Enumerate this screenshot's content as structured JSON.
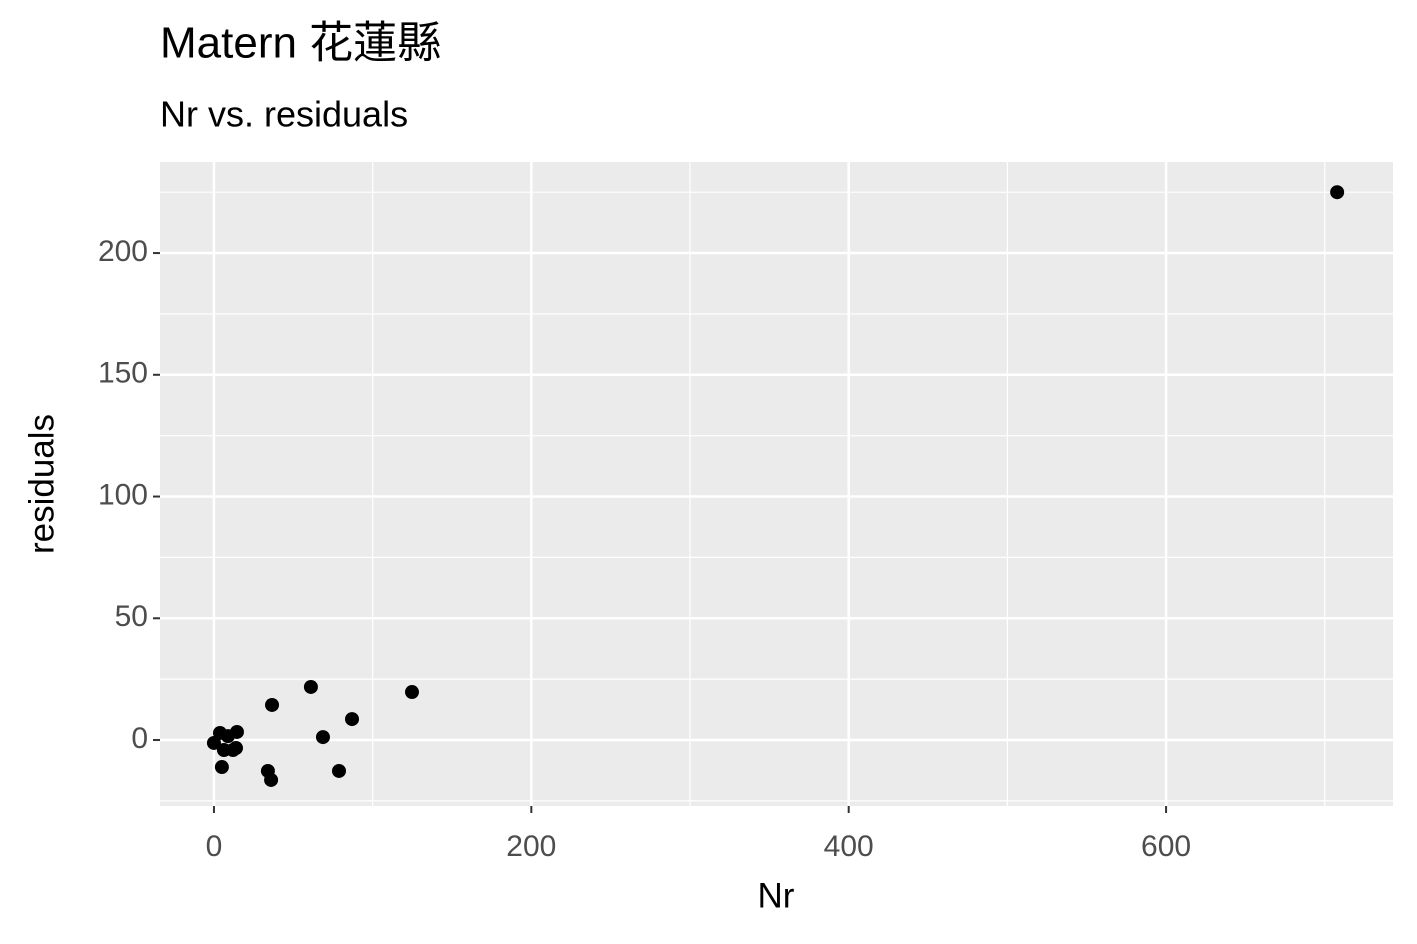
{
  "chart_data": {
    "type": "scatter",
    "title": "Matern 花蓮縣",
    "subtitle": "Nr vs. residuals",
    "x_label": "Nr",
    "y_label": "residuals",
    "x": [
      707.8,
      124.8,
      61.1,
      36.6,
      87,
      68.7,
      78.8,
      34,
      36,
      0,
      3.8,
      8.8,
      14.5,
      13.9,
      12,
      5,
      6.3
    ],
    "series": [
      {
        "color": "#000000",
        "values": [
          225,
          19.7,
          21.8,
          14.4,
          8.6,
          1.2,
          -12.7,
          -12.7,
          -16.4,
          -1.2,
          2.9,
          1.6,
          3.3,
          -3.3,
          -4.1,
          -11.1,
          -4.1
        ]
      }
    ],
    "xlim": [
      -34,
      743
    ],
    "ylim": [
      -27.1,
      237.4
    ],
    "xticks": [
      0,
      200,
      400,
      600
    ],
    "yticks": [
      0,
      50,
      100,
      150,
      200
    ],
    "x_minor_breaks": [
      100,
      300,
      500,
      700
    ],
    "y_minor_breaks": [
      -25,
      25,
      75,
      125,
      175,
      225
    ],
    "grid": true,
    "panel_color": "#ebebeb"
  }
}
